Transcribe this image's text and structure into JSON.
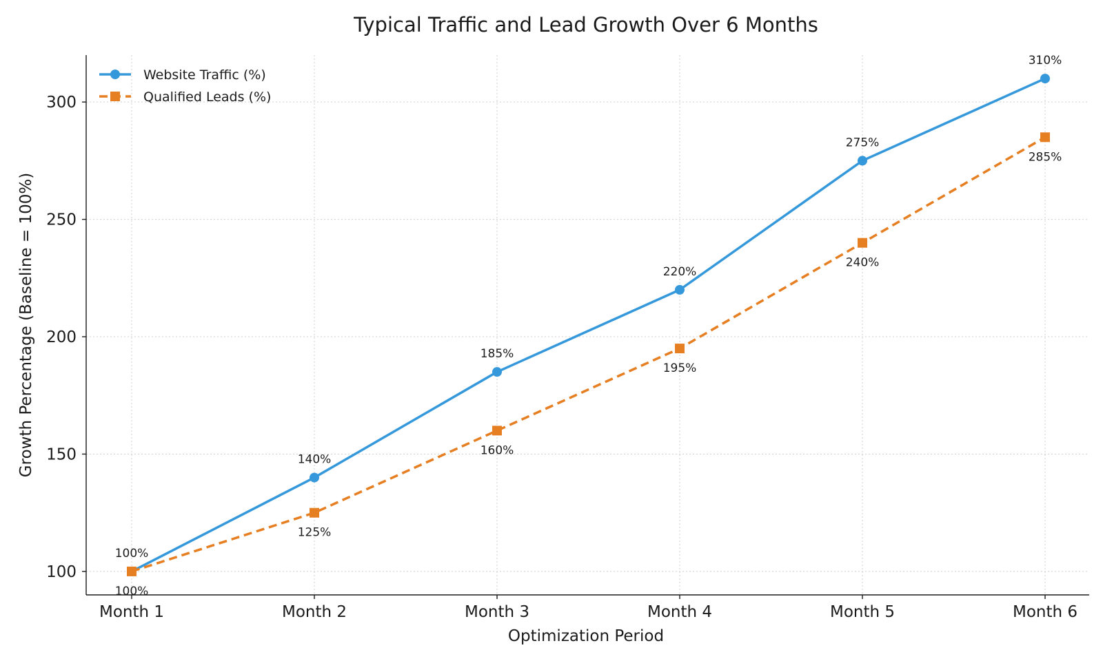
{
  "chart_data": {
    "type": "line",
    "title": "Typical Traffic and Lead Growth Over 6 Months",
    "xlabel": "Optimization Period",
    "ylabel": "Growth Percentage (Baseline = 100%)",
    "categories": [
      "Month 1",
      "Month 2",
      "Month 3",
      "Month 4",
      "Month 5",
      "Month 6"
    ],
    "ylim": [
      90,
      320
    ],
    "yticks": [
      100,
      150,
      200,
      250,
      300
    ],
    "grid": true,
    "legend_position": "top-left",
    "series": [
      {
        "name": "Website Traffic (%)",
        "values": [
          100,
          140,
          185,
          220,
          275,
          310
        ],
        "labels": [
          "100%",
          "140%",
          "185%",
          "220%",
          "275%",
          "310%"
        ],
        "color": "#3498db",
        "line_style": "solid",
        "marker": "circle",
        "label_position": "above"
      },
      {
        "name": "Qualified Leads (%)",
        "values": [
          100,
          125,
          160,
          195,
          240,
          285
        ],
        "labels": [
          "100%",
          "125%",
          "160%",
          "195%",
          "240%",
          "285%"
        ],
        "color": "#e67e22",
        "line_style": "dashed",
        "marker": "square",
        "label_position": "below"
      }
    ]
  }
}
